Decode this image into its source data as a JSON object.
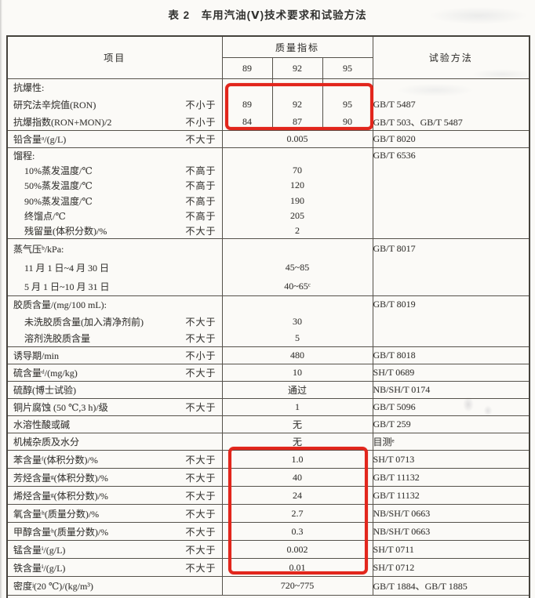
{
  "title": "表 2　车用汽油(Ⅴ)技术要求和试验方法",
  "header": {
    "item": "项目",
    "quality": "质量指标",
    "grades": [
      "89",
      "92",
      "95"
    ],
    "method": "试验方法"
  },
  "rows": [
    {
      "t": "g3",
      "item": "抗爆性:"
    },
    {
      "t": "v3",
      "item": "研究法辛烷值(RON)",
      "q": "不小于",
      "vals": [
        "89",
        "92",
        "95"
      ],
      "method": "GB/T 5487"
    },
    {
      "t": "v3",
      "item": "抗爆指数(RON+MON)/2",
      "q": "不小于",
      "vals": [
        "84",
        "87",
        "90"
      ],
      "method": "GB/T 503、GB/T 5487",
      "end": true
    },
    {
      "t": "v1",
      "item": "铅含量ᵃ/(g/L)",
      "q": "不大于",
      "val": "0.005",
      "method": "GB/T 8020",
      "end": true
    },
    {
      "t": "g1",
      "item": "馏程:",
      "method": "GB/T 6536"
    },
    {
      "t": "v1",
      "item": "10%蒸发温度/℃",
      "q": "不高于",
      "val": "70",
      "indent": true
    },
    {
      "t": "v1",
      "item": "50%蒸发温度/℃",
      "q": "不高于",
      "val": "120",
      "indent": true
    },
    {
      "t": "v1",
      "item": "90%蒸发温度/℃",
      "q": "不高于",
      "val": "190",
      "indent": true
    },
    {
      "t": "v1",
      "item": "终馏点/℃",
      "q": "不高于",
      "val": "205",
      "indent": true
    },
    {
      "t": "v1",
      "item": "残留量(体积分数)/%",
      "q": "不大于",
      "val": "2",
      "indent": true,
      "end": true
    },
    {
      "t": "g1",
      "item": "蒸气压ᵇ/kPa:",
      "method": "GB/T 8017"
    },
    {
      "t": "v1",
      "item": "11 月 1 日~4 月 30 日",
      "val": "45~85",
      "indent": true
    },
    {
      "t": "v1",
      "item": "5 月 1 日~10 月 31 日",
      "val": "40~65ᶜ",
      "indent": true,
      "end": true
    },
    {
      "t": "g1",
      "item": "胶质含量/(mg/100 mL):",
      "method": "GB/T 8019"
    },
    {
      "t": "v1",
      "item": "未洗胶质含量(加入清净剂前)",
      "q": "不大于",
      "val": "30",
      "indent": true
    },
    {
      "t": "v1",
      "item": "溶剂洗胶质含量",
      "q": "不大于",
      "val": "5",
      "indent": true,
      "end": true
    },
    {
      "t": "v1",
      "item": "诱导期/min",
      "q": "不小于",
      "val": "480",
      "method": "GB/T 8018",
      "end": true
    },
    {
      "t": "v1",
      "item": "硫含量ᵈ/(mg/kg)",
      "q": "不大于",
      "val": "10",
      "method": "SH/T 0689",
      "end": true
    },
    {
      "t": "v1",
      "item": "硫醇(博士试验)",
      "val": "通过",
      "method": "NB/SH/T 0174",
      "end": true
    },
    {
      "t": "v1",
      "item": "铜片腐蚀 (50 ℃,3 h)/级",
      "q": "不大于",
      "val": "1",
      "method": "GB/T 5096",
      "end": true
    },
    {
      "t": "v1",
      "item": "水溶性酸或碱",
      "val": "无",
      "method": "GB/T 259",
      "end": true
    },
    {
      "t": "v1",
      "item": "机械杂质及水分",
      "val": "无",
      "method": "目测ᵉ",
      "end": true
    },
    {
      "t": "v1",
      "item": "苯含量ᶠ(体积分数)/%",
      "q": "不大于",
      "val": "1.0",
      "method": "SH/T 0713",
      "end": true
    },
    {
      "t": "v1",
      "item": "芳烃含量ᵍ(体积分数)/%",
      "q": "不大于",
      "val": "40",
      "method": "GB/T 11132",
      "end": true
    },
    {
      "t": "v1",
      "item": "烯烃含量ᵍ(体积分数)/%",
      "q": "不大于",
      "val": "24",
      "method": "GB/T 11132",
      "end": true
    },
    {
      "t": "v1",
      "item": "氧含量ʰ(质量分数)/%",
      "q": "不大于",
      "val": "2.7",
      "method": "NB/SH/T 0663",
      "end": true
    },
    {
      "t": "v1",
      "item": "甲醇含量ʰ(质量分数)/%",
      "q": "不大于",
      "val": "0.3",
      "method": "NB/SH/T 0663",
      "end": true
    },
    {
      "t": "v1",
      "item": "锰含量ⁱ/(g/L)",
      "q": "不大于",
      "val": "0.002",
      "method": "SH/T 0711",
      "end": true
    },
    {
      "t": "v1",
      "item": "铁含量ⁱ/(g/L)",
      "q": "不大于",
      "val": "0.01",
      "method": "SH/T 0712",
      "end": true
    },
    {
      "t": "v1",
      "item": "密度ʲ(20 ℃)/(kg/m³)",
      "val": "720~775",
      "method": "GB/T 1884、GB/T 1885",
      "end": true
    }
  ],
  "annotations": [
    {
      "name": "octane-values-highlight",
      "encloses": "RON 89/92/95 and antiknock index 84/87/90"
    },
    {
      "name": "content-limit-values-highlight",
      "encloses": "1.0, 40, 24, 2.7, 0.3, 0.002, 0.01"
    }
  ],
  "colors": {
    "annotation_red": "#e2261c",
    "table_line": "#55514a",
    "paper": "#fbfaf7",
    "text": "#3d3b38"
  }
}
